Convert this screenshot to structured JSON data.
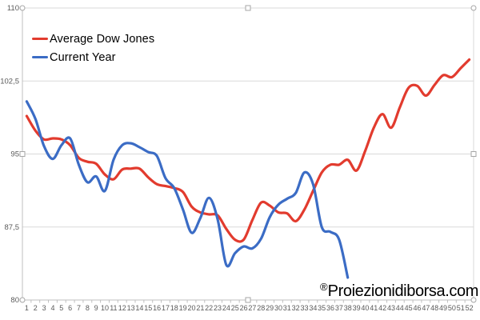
{
  "chart_data": {
    "type": "line",
    "smoothed": true,
    "title": "",
    "xlabel": "",
    "ylabel": "",
    "ylim": [
      80,
      110
    ],
    "grid": "horizontal",
    "legend_position": "top-left-inside",
    "x_categories": [
      "1",
      "2",
      "3",
      "4",
      "5",
      "6",
      "7",
      "8",
      "9",
      "10",
      "11",
      "12",
      "13",
      "14",
      "15",
      "16",
      "17",
      "18",
      "19",
      "20",
      "21",
      "22",
      "23",
      "24",
      "25",
      "26",
      "27",
      "28",
      "29",
      "30",
      "31",
      "32",
      "33",
      "34",
      "35",
      "36",
      "37",
      "38",
      "39",
      "40",
      "41",
      "42",
      "43",
      "44",
      "45",
      "46",
      "47",
      "48",
      "49",
      "50",
      "51",
      "52"
    ],
    "yticks": [
      {
        "value": 110,
        "label": "110"
      },
      {
        "value": 102.5,
        "label": "102,5"
      },
      {
        "value": 95,
        "label": "95"
      },
      {
        "value": 87.5,
        "label": "87,5"
      },
      {
        "value": 80,
        "label": "80"
      }
    ],
    "series": [
      {
        "name": "Average Dow Jones",
        "color": "#e23b2e",
        "values": [
          98.9,
          97.4,
          96.5,
          96.6,
          96.5,
          95.9,
          94.6,
          94.2,
          94.0,
          92.9,
          92.4,
          93.4,
          93.5,
          93.5,
          92.6,
          91.9,
          91.7,
          91.5,
          91.1,
          89.6,
          89.0,
          88.8,
          88.7,
          87.3,
          86.2,
          86.2,
          88.2,
          90.0,
          89.7,
          89.0,
          88.9,
          88.1,
          89.3,
          91.2,
          93.1,
          93.9,
          93.9,
          94.4,
          93.3,
          95.3,
          97.7,
          99.1,
          97.7,
          99.8,
          101.8,
          102.0,
          101.0,
          102.1,
          103.1,
          102.9,
          103.8,
          104.7
        ]
      },
      {
        "name": "Current Year",
        "color": "#3b6cc5",
        "values": [
          100.4,
          98.6,
          95.8,
          94.5,
          95.9,
          96.6,
          93.9,
          92.1,
          92.7,
          91.2,
          94.4,
          95.9,
          96.1,
          95.7,
          95.2,
          94.8,
          92.5,
          91.5,
          89.3,
          86.9,
          88.4,
          90.5,
          88.3,
          83.6,
          84.8,
          85.5,
          85.3,
          86.3,
          88.5,
          89.8,
          90.4,
          91.0,
          93.1,
          91.9,
          87.5,
          87.0,
          86.2,
          82.3
        ]
      }
    ]
  },
  "legend": {
    "items": [
      {
        "label": "Average Dow Jones",
        "color": "#e23b2e"
      },
      {
        "label": "Current Year",
        "color": "#3b6cc5"
      }
    ]
  },
  "watermark": {
    "symbol": "®",
    "text": "Proiezionidiborsa.com"
  },
  "style": {
    "background": "#ffffff",
    "grid_color": "#d9d9d9",
    "axis_color": "#bfbfbf",
    "tick_label_color": "#595959",
    "handle_border": "#a6a6a6",
    "handle_fill": "#ffffff"
  }
}
